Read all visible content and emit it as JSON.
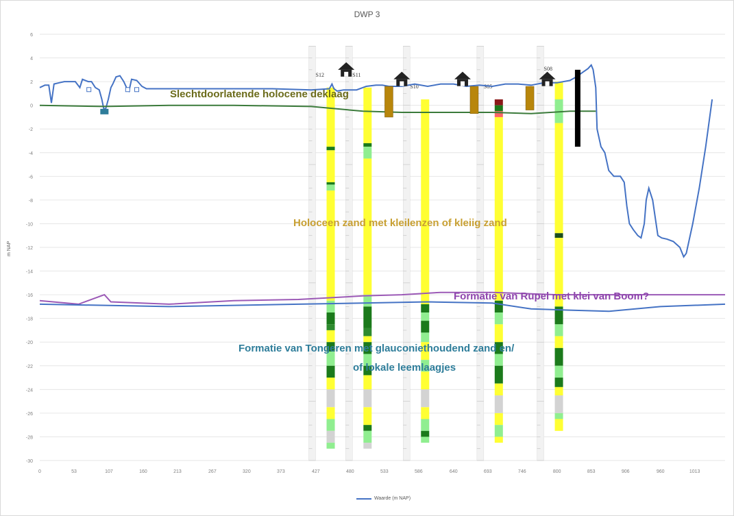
{
  "chart_data": {
    "type": "line",
    "title": "DWP 3",
    "ylabel": "m NAP",
    "xlabel": "",
    "ylim": [
      -30,
      6
    ],
    "xlim": [
      0,
      1060
    ],
    "y_ticks": [
      "6",
      "4",
      "2",
      "0",
      "-2",
      "-4",
      "-6",
      "-8",
      "-10",
      "-12",
      "-14",
      "-16",
      "-18",
      "-20",
      "-22",
      "-24",
      "-26",
      "-28",
      "-30"
    ],
    "x_ticks": [
      "0",
      "53",
      "107",
      "160",
      "213",
      "267",
      "320",
      "373",
      "427",
      "480",
      "533",
      "586",
      "640",
      "693",
      "746",
      "800",
      "853",
      "906",
      "960",
      "1013"
    ],
    "legend": [
      "Waarde (m NAP)"
    ],
    "series": [
      {
        "name": "Waarde (m NAP)",
        "color": "#4472c4",
        "points": [
          [
            0,
            1.5
          ],
          [
            8,
            1.7
          ],
          [
            14,
            1.7
          ],
          [
            18,
            0.2
          ],
          [
            22,
            1.8
          ],
          [
            30,
            1.9
          ],
          [
            38,
            2.0
          ],
          [
            55,
            2.0
          ],
          [
            62,
            1.5
          ],
          [
            66,
            2.2
          ],
          [
            75,
            2.0
          ],
          [
            80,
            2.0
          ],
          [
            86,
            1.5
          ],
          [
            92,
            1.3
          ],
          [
            96,
            0.5
          ],
          [
            99,
            -0.3
          ],
          [
            102,
            -0.3
          ],
          [
            106,
            0.5
          ],
          [
            110,
            1.5
          ],
          [
            113,
            1.8
          ],
          [
            118,
            2.4
          ],
          [
            124,
            2.5
          ],
          [
            130,
            2.0
          ],
          [
            135,
            1.4
          ],
          [
            138,
            1.2
          ],
          [
            142,
            2.2
          ],
          [
            150,
            2.1
          ],
          [
            158,
            1.6
          ],
          [
            165,
            1.4
          ],
          [
            180,
            1.4
          ],
          [
            200,
            1.4
          ],
          [
            240,
            1.4
          ],
          [
            300,
            1.4
          ],
          [
            360,
            1.4
          ],
          [
            420,
            1.3
          ],
          [
            448,
            1.4
          ],
          [
            452,
            1.8
          ],
          [
            455,
            1.4
          ],
          [
            460,
            1.2
          ],
          [
            470,
            1.3
          ],
          [
            490,
            1.3
          ],
          [
            505,
            1.6
          ],
          [
            520,
            1.7
          ],
          [
            530,
            1.7
          ],
          [
            540,
            1.6
          ],
          [
            560,
            1.6
          ],
          [
            580,
            1.8
          ],
          [
            600,
            1.6
          ],
          [
            620,
            1.8
          ],
          [
            640,
            1.8
          ],
          [
            660,
            1.6
          ],
          [
            680,
            1.7
          ],
          [
            700,
            1.6
          ],
          [
            720,
            1.8
          ],
          [
            740,
            1.8
          ],
          [
            760,
            1.7
          ],
          [
            780,
            1.9
          ],
          [
            800,
            1.9
          ],
          [
            820,
            2.1
          ],
          [
            830,
            2.4
          ],
          [
            840,
            2.8
          ],
          [
            848,
            3.1
          ],
          [
            853,
            3.4
          ],
          [
            856,
            3.0
          ],
          [
            860,
            1.5
          ],
          [
            862,
            -2.0
          ],
          [
            868,
            -3.5
          ],
          [
            874,
            -4.0
          ],
          [
            880,
            -5.5
          ],
          [
            888,
            -6.0
          ],
          [
            898,
            -6.0
          ],
          [
            904,
            -6.5
          ],
          [
            908,
            -8.5
          ],
          [
            912,
            -10.0
          ],
          [
            918,
            -10.5
          ],
          [
            925,
            -11.0
          ],
          [
            930,
            -11.2
          ],
          [
            935,
            -10.0
          ],
          [
            938,
            -8.0
          ],
          [
            942,
            -7.0
          ],
          [
            948,
            -8.0
          ],
          [
            952,
            -9.5
          ],
          [
            956,
            -11.0
          ],
          [
            962,
            -11.2
          ],
          [
            970,
            -11.3
          ],
          [
            980,
            -11.5
          ],
          [
            990,
            -12.0
          ],
          [
            996,
            -12.8
          ],
          [
            1000,
            -12.5
          ],
          [
            1010,
            -10.0
          ],
          [
            1020,
            -7.0
          ],
          [
            1030,
            -3.5
          ],
          [
            1040,
            0.5
          ]
        ]
      },
      {
        "name": "",
        "color": "#3a7a3a",
        "points": [
          [
            0,
            0.0
          ],
          [
            100,
            -0.1
          ],
          [
            200,
            0.0
          ],
          [
            300,
            0.0
          ],
          [
            420,
            -0.1
          ],
          [
            500,
            -0.5
          ],
          [
            560,
            -0.6
          ],
          [
            620,
            -0.6
          ],
          [
            700,
            -0.6
          ],
          [
            760,
            -0.7
          ],
          [
            820,
            -0.5
          ],
          [
            860,
            -0.5
          ]
        ]
      },
      {
        "name": "",
        "color": "#9b59b6",
        "points": [
          [
            0,
            -16.5
          ],
          [
            60,
            -16.8
          ],
          [
            100,
            -16.0
          ],
          [
            110,
            -16.6
          ],
          [
            200,
            -16.8
          ],
          [
            300,
            -16.5
          ],
          [
            400,
            -16.4
          ],
          [
            500,
            -16.1
          ],
          [
            560,
            -16.0
          ],
          [
            620,
            -15.8
          ],
          [
            700,
            -15.8
          ],
          [
            800,
            -16.0
          ],
          [
            900,
            -16.0
          ],
          [
            1060,
            -16.0
          ]
        ]
      },
      {
        "name": "",
        "color": "#4472c4",
        "points": [
          [
            0,
            -16.8
          ],
          [
            200,
            -17.0
          ],
          [
            400,
            -16.8
          ],
          [
            500,
            -16.7
          ],
          [
            600,
            -16.6
          ],
          [
            700,
            -16.7
          ],
          [
            760,
            -17.2
          ],
          [
            820,
            -17.3
          ],
          [
            880,
            -17.4
          ],
          [
            960,
            -17.0
          ],
          [
            1060,
            -16.8
          ]
        ]
      }
    ],
    "boreholes": [
      {
        "label": "S12",
        "x": 450,
        "color_top": 1.5,
        "layers": [
          [
            "#ffff33",
            1.5,
            -3.5
          ],
          [
            "#1b7a1b",
            -3.5,
            -3.8
          ],
          [
            "#ffff33",
            -3.8,
            -6.5
          ],
          [
            "#1b7a1b",
            -6.5,
            -6.7
          ],
          [
            "#90ee90",
            -6.7,
            -7.2
          ],
          [
            "#ffff33",
            -7.2,
            -16.5
          ],
          [
            "#90ee90",
            -16.5,
            -17.5
          ],
          [
            "#1b7a1b",
            -17.5,
            -18.5
          ],
          [
            "#2e8b2e",
            -18.5,
            -19.0
          ],
          [
            "#ffff33",
            -19.0,
            -20.0
          ],
          [
            "#1b7a1b",
            -20.0,
            -20.8
          ],
          [
            "#90ee90",
            -20.8,
            -22.0
          ],
          [
            "#1b7a1b",
            -22.0,
            -23.0
          ],
          [
            "#ffff33",
            -23.0,
            -24.0
          ],
          [
            "#d3d3d3",
            -24.0,
            -25.5
          ],
          [
            "#ffff33",
            -25.5,
            -26.5
          ],
          [
            "#90ee90",
            -26.5,
            -27.5
          ],
          [
            "#d3d3d3",
            -27.5,
            -28.5
          ],
          [
            "#90ee90",
            -28.5,
            -29.0
          ]
        ]
      },
      {
        "label": "S11",
        "x": 507,
        "color_top": 1.5,
        "layers": [
          [
            "#ffff33",
            1.5,
            -3.2
          ],
          [
            "#1b7a1b",
            -3.2,
            -3.5
          ],
          [
            "#90ee90",
            -3.5,
            -4.5
          ],
          [
            "#ffff33",
            -4.5,
            -16.0
          ],
          [
            "#90ee90",
            -16.0,
            -17.0
          ],
          [
            "#1b7a1b",
            -17.0,
            -18.8
          ],
          [
            "#2e8b2e",
            -18.8,
            -19.5
          ],
          [
            "#ffff33",
            -19.5,
            -20.0
          ],
          [
            "#1b7a1b",
            -20.0,
            -21.0
          ],
          [
            "#90ee90",
            -21.0,
            -22.0
          ],
          [
            "#1b7a1b",
            -22.0,
            -22.8
          ],
          [
            "#ffff33",
            -22.8,
            -24.0
          ],
          [
            "#d3d3d3",
            -24.0,
            -25.5
          ],
          [
            "#ffff33",
            -25.5,
            -27.0
          ],
          [
            "#1b7a1b",
            -27.0,
            -27.5
          ],
          [
            "#90ee90",
            -27.5,
            -28.5
          ],
          [
            "#d3d3d3",
            -28.5,
            -29.0
          ]
        ]
      },
      {
        "label": "S10",
        "x": 596,
        "color_top": 0.5,
        "layers": [
          [
            "#ffff33",
            0.5,
            -16.8
          ],
          [
            "#1b7a1b",
            -16.8,
            -17.5
          ],
          [
            "#90ee90",
            -17.5,
            -18.2
          ],
          [
            "#1b7a1b",
            -18.2,
            -19.2
          ],
          [
            "#90ee90",
            -19.2,
            -20.0
          ],
          [
            "#ffff33",
            -20.0,
            -21.5
          ],
          [
            "#90ee90",
            -21.5,
            -22.5
          ],
          [
            "#ffff33",
            -22.5,
            -24.0
          ],
          [
            "#d3d3d3",
            -24.0,
            -25.5
          ],
          [
            "#ffff33",
            -25.5,
            -26.5
          ],
          [
            "#90ee90",
            -26.5,
            -27.5
          ],
          [
            "#1b7a1b",
            -27.5,
            -28.0
          ],
          [
            "#90ee90",
            -28.0,
            -28.5
          ]
        ]
      },
      {
        "label": "S05",
        "x": 710,
        "color_top": 0.5,
        "layers": [
          [
            "#8b1a1a",
            0.5,
            0.0
          ],
          [
            "#1b7a1b",
            0.0,
            -0.5
          ],
          [
            "#ff6666",
            -0.5,
            -1.0
          ],
          [
            "#ffff33",
            -1.0,
            -16.5
          ],
          [
            "#1b7a1b",
            -16.5,
            -17.5
          ],
          [
            "#90ee90",
            -17.5,
            -18.5
          ],
          [
            "#ffff33",
            -18.5,
            -20.0
          ],
          [
            "#1b7a1b",
            -20.0,
            -21.0
          ],
          [
            "#90ee90",
            -21.0,
            -22.0
          ],
          [
            "#1b7a1b",
            -22.0,
            -23.5
          ],
          [
            "#ffff33",
            -23.5,
            -24.5
          ],
          [
            "#d3d3d3",
            -24.5,
            -26.0
          ],
          [
            "#ffff33",
            -26.0,
            -27.0
          ],
          [
            "#90ee90",
            -27.0,
            -28.0
          ],
          [
            "#ffff33",
            -28.0,
            -28.5
          ]
        ]
      },
      {
        "label": "S08",
        "x": 803,
        "color_top": 2.0,
        "layers": [
          [
            "#ffff33",
            2.0,
            0.5
          ],
          [
            "#90ee90",
            0.5,
            -1.5
          ],
          [
            "#ffff33",
            -1.5,
            -10.8
          ],
          [
            "#1b4d1b",
            -10.8,
            -11.2
          ],
          [
            "#ffff33",
            -11.2,
            -17.0
          ],
          [
            "#1b7a1b",
            -17.0,
            -18.5
          ],
          [
            "#90ee90",
            -18.5,
            -19.5
          ],
          [
            "#ffff33",
            -19.5,
            -20.5
          ],
          [
            "#1b7a1b",
            -20.5,
            -22.0
          ],
          [
            "#90ee90",
            -22.0,
            -23.0
          ],
          [
            "#1b7a1b",
            -23.0,
            -23.8
          ],
          [
            "#ffff33",
            -23.8,
            -24.5
          ],
          [
            "#d3d3d3",
            -24.5,
            -26.0
          ],
          [
            "#90ee90",
            -26.0,
            -26.5
          ],
          [
            "#ffff33",
            -26.5,
            -27.5
          ]
        ]
      }
    ],
    "structures": [
      {
        "x": 540,
        "top": 1.6,
        "bottom": -1.0
      },
      {
        "x": 672,
        "top": 1.6,
        "bottom": -0.7
      },
      {
        "x": 758,
        "top": 1.6,
        "bottom": -0.4
      }
    ],
    "sheet_pile": {
      "x": 832,
      "top": 3.0,
      "bottom": -3.5
    },
    "houses": [
      {
        "x": 474,
        "y": 3.0
      },
      {
        "x": 560,
        "y": 2.2
      },
      {
        "x": 654,
        "y": 2.2
      },
      {
        "x": 785,
        "y": 2.2
      }
    ],
    "ditches": [
      {
        "x": 76,
        "label": "S1"
      },
      {
        "x": 136,
        "label": ""
      },
      {
        "x": 150,
        "label": ""
      }
    ],
    "well": {
      "x": 100,
      "label": "GV1"
    }
  },
  "annotations": {
    "deklaag": "Slechtdoorlatende holocene deklaag",
    "holoceen": "Holoceen zand met kleilenzen of kleiig zand",
    "rupel": "Formatie van Rupel met klei van Boom?",
    "tongeren_1": "Formatie van Tongeren met glauconiethoudend zand en/",
    "tongeren_2": "of lokale leemlaagjes"
  },
  "colors": {
    "deklaag": "#6b6b1a",
    "holoceen": "#c8a033",
    "rupel": "#8e44ad",
    "tongeren": "#2e7d9a"
  }
}
